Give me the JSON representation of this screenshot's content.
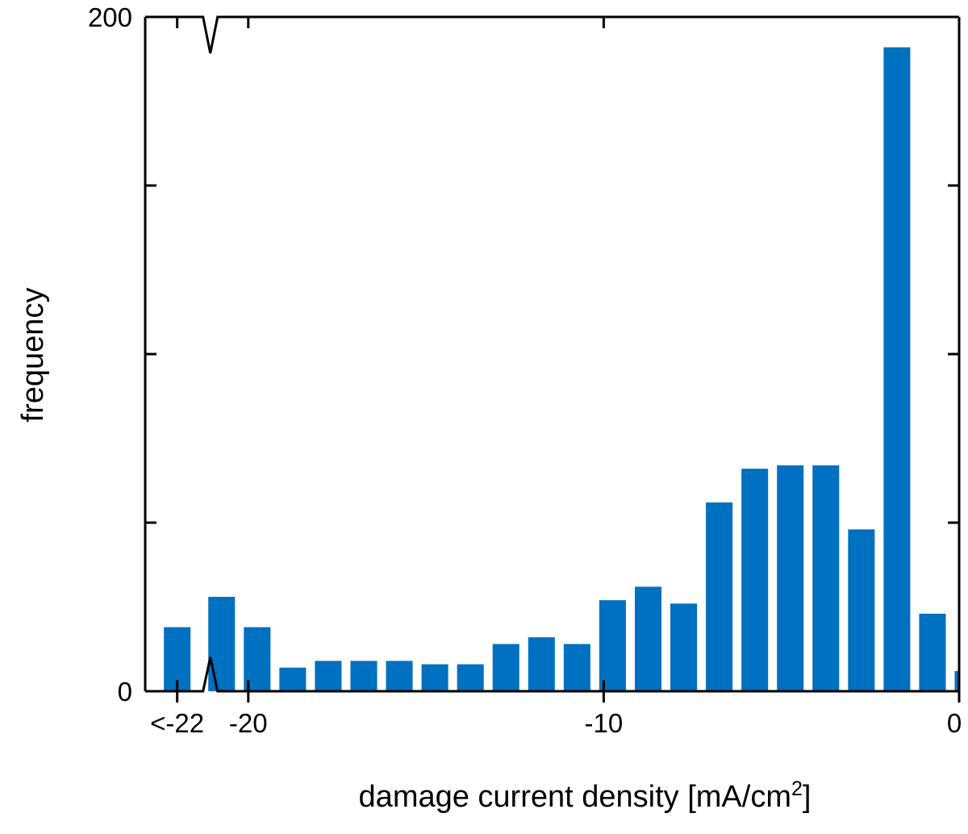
{
  "chart_data": {
    "type": "bar",
    "title": "",
    "xlabel": "damage current density [mA/cm",
    "xlabel_superscript": "2",
    "xlabel_suffix": "]",
    "ylabel": "frequency",
    "ylim": [
      0,
      200
    ],
    "xlim": [
      -22.9,
      0
    ],
    "y_tick_labels": [
      {
        "value": 0,
        "label": "0"
      },
      {
        "value": 200,
        "label": "200"
      }
    ],
    "y_minor_ticks": [
      50,
      100,
      150
    ],
    "x_tick_labels": [
      {
        "value": -22,
        "label": "<-22"
      },
      {
        "value": -20,
        "label": "-20"
      },
      {
        "value": -10,
        "label": "-10"
      },
      {
        "value": 0,
        "label": "0"
      }
    ],
    "x_minor_ticks": [
      -21,
      -19,
      -18,
      -17,
      -16,
      -15,
      -14,
      -13,
      -12,
      -11,
      -9,
      -8,
      -7,
      -6,
      -5,
      -4,
      -3,
      -2,
      -1
    ],
    "axis_break": {
      "x": -21.0,
      "style": "zigzag"
    },
    "bar_color": "#0070C0",
    "bar_width": 0.75,
    "bars": [
      {
        "x": -22,
        "value": 19
      },
      {
        "x": -20.75,
        "value": 28
      },
      {
        "x": -19.75,
        "value": 19
      },
      {
        "x": -18.75,
        "value": 7
      },
      {
        "x": -17.75,
        "value": 9
      },
      {
        "x": -16.75,
        "value": 9
      },
      {
        "x": -15.75,
        "value": 9
      },
      {
        "x": -14.75,
        "value": 8
      },
      {
        "x": -13.75,
        "value": 8
      },
      {
        "x": -12.75,
        "value": 14
      },
      {
        "x": -11.75,
        "value": 16
      },
      {
        "x": -10.75,
        "value": 14
      },
      {
        "x": -9.75,
        "value": 27
      },
      {
        "x": -8.75,
        "value": 31
      },
      {
        "x": -7.75,
        "value": 26
      },
      {
        "x": -6.75,
        "value": 56
      },
      {
        "x": -5.75,
        "value": 66
      },
      {
        "x": -4.75,
        "value": 67
      },
      {
        "x": -3.75,
        "value": 67
      },
      {
        "x": -2.75,
        "value": 48
      },
      {
        "x": -1.75,
        "value": 191
      },
      {
        "x": -0.75,
        "value": 23
      },
      {
        "x": 0.25,
        "value": 6
      }
    ],
    "grid": false,
    "legend": "none"
  }
}
